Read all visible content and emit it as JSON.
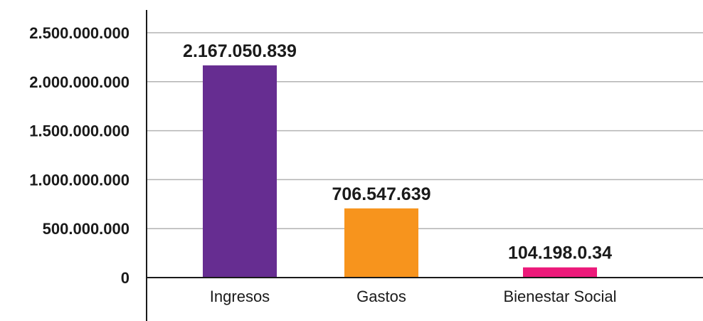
{
  "chart_data": {
    "type": "bar",
    "categories": [
      "Ingresos",
      "Gastos",
      "Bienestar Social"
    ],
    "values": [
      2167050839,
      706547639,
      104198034
    ],
    "data_labels": [
      "2.167.050.839",
      "706.547.639",
      "104.198.0.34"
    ],
    "ylim": [
      0,
      2500000000
    ],
    "yticks": [
      0,
      500000000,
      1000000000,
      1500000000,
      2000000000,
      2500000000
    ],
    "ytick_labels": [
      "0",
      "500.000.000",
      "1.000.000.000",
      "1.500.000.000",
      "2.000.000.000",
      "2.500.000.000"
    ],
    "grid": true,
    "legend": "none",
    "title": "",
    "xlabel": "",
    "ylabel": "",
    "colors": [
      "#662d91",
      "#f7941d",
      "#ec1a7a"
    ],
    "grid_color": "#b3b3b3",
    "axis_color": "#1a1a1a"
  }
}
